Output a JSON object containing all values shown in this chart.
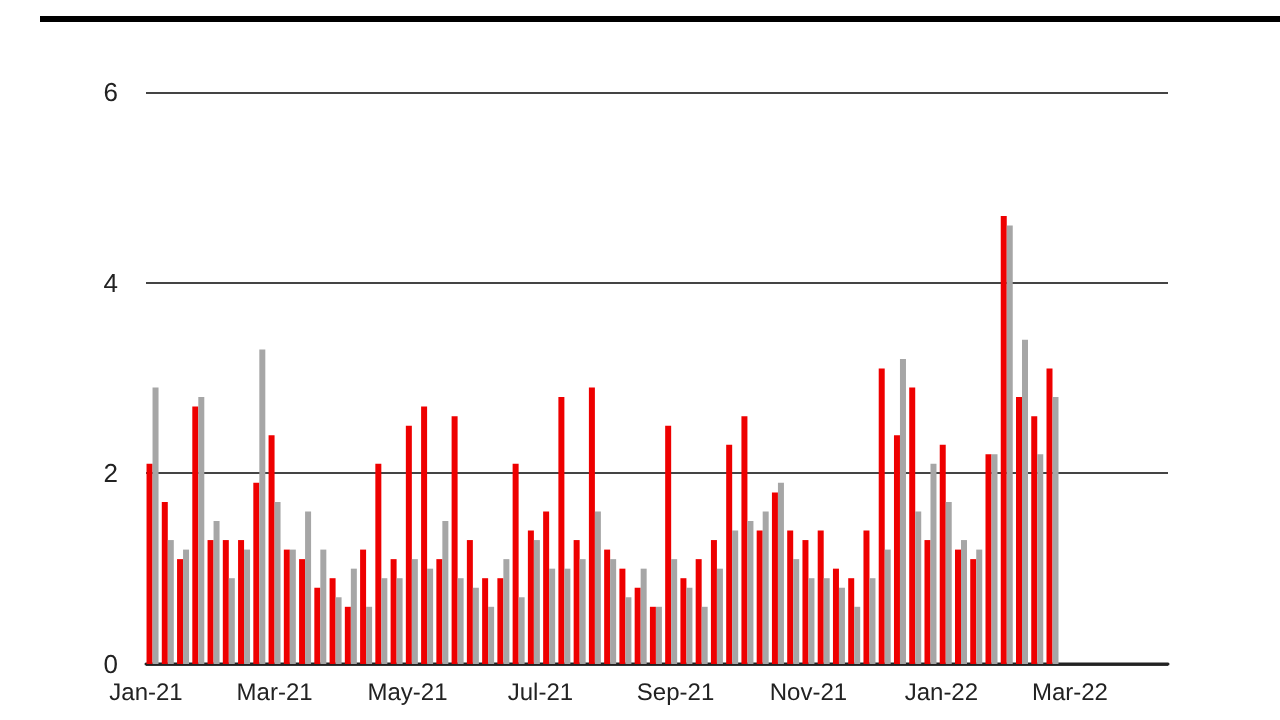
{
  "chart_data": {
    "type": "bar",
    "x": [
      "2021-01-04",
      "2021-01-11",
      "2021-01-18",
      "2021-01-25",
      "2021-02-01",
      "2021-02-08",
      "2021-02-15",
      "2021-02-22",
      "2021-03-01",
      "2021-03-08",
      "2021-03-15",
      "2021-03-22",
      "2021-03-29",
      "2021-04-05",
      "2021-04-12",
      "2021-04-19",
      "2021-04-26",
      "2021-05-03",
      "2021-05-10",
      "2021-05-17",
      "2021-05-24",
      "2021-05-31",
      "2021-06-07",
      "2021-06-14",
      "2021-06-21",
      "2021-06-28",
      "2021-07-05",
      "2021-07-12",
      "2021-07-19",
      "2021-07-26",
      "2021-08-02",
      "2021-08-09",
      "2021-08-16",
      "2021-08-23",
      "2021-08-30",
      "2021-09-06",
      "2021-09-13",
      "2021-09-20",
      "2021-09-27",
      "2021-10-04",
      "2021-10-11",
      "2021-10-18",
      "2021-10-25",
      "2021-11-01",
      "2021-11-08",
      "2021-11-15",
      "2021-11-22",
      "2021-11-29",
      "2021-12-06",
      "2021-12-13",
      "2021-12-20",
      "2021-12-27",
      "2022-01-03",
      "2022-01-10",
      "2022-01-17",
      "2022-01-24",
      "2022-01-31",
      "2022-02-07",
      "2022-02-14",
      "2022-02-21"
    ],
    "series": [
      {
        "color": "#ee0000",
        "values": [
          2.1,
          1.7,
          1.1,
          2.7,
          1.3,
          1.3,
          1.3,
          1.9,
          2.4,
          1.2,
          1.1,
          0.8,
          0.9,
          0.6,
          1.2,
          2.1,
          1.1,
          2.5,
          2.7,
          1.1,
          2.6,
          1.3,
          0.9,
          0.9,
          2.1,
          1.4,
          1.6,
          2.8,
          1.3,
          2.9,
          1.2,
          1.0,
          0.8,
          0.6,
          2.5,
          0.9,
          1.1,
          1.3,
          2.3,
          2.6,
          1.4,
          1.8,
          1.4,
          1.3,
          1.4,
          1.0,
          0.9,
          1.4,
          3.1,
          2.4,
          2.9,
          1.3,
          2.3,
          1.2,
          1.1,
          2.2,
          4.7,
          2.8,
          2.6,
          3.1
        ]
      },
      {
        "color": "#a6a6a6",
        "values": [
          2.9,
          1.3,
          1.2,
          2.8,
          1.5,
          0.9,
          1.2,
          3.3,
          1.7,
          1.2,
          1.6,
          1.2,
          0.7,
          1.0,
          0.6,
          0.9,
          0.9,
          1.1,
          1.0,
          1.5,
          0.9,
          0.8,
          0.6,
          1.1,
          0.7,
          1.3,
          1.0,
          1.0,
          1.1,
          1.6,
          1.1,
          0.7,
          1.0,
          0.6,
          1.1,
          0.8,
          0.6,
          1.0,
          1.4,
          1.5,
          1.6,
          1.9,
          1.1,
          0.9,
          0.9,
          0.8,
          0.6,
          0.9,
          1.2,
          3.2,
          1.6,
          2.1,
          1.7,
          1.3,
          1.2,
          2.2,
          4.6,
          3.4,
          2.2,
          2.8
        ]
      }
    ],
    "xlim": [
      "2021-01-01",
      "2022-04-15"
    ],
    "xticks": [
      {
        "value": "2021-01-01",
        "label": "Jan-21"
      },
      {
        "value": "2021-03-01",
        "label": "Mar-21"
      },
      {
        "value": "2021-05-01",
        "label": "May-21"
      },
      {
        "value": "2021-07-01",
        "label": "Jul-21"
      },
      {
        "value": "2021-09-01",
        "label": "Sep-21"
      },
      {
        "value": "2021-11-01",
        "label": "Nov-21"
      },
      {
        "value": "2022-01-01",
        "label": "Jan-22"
      },
      {
        "value": "2022-03-01",
        "label": "Mar-22"
      }
    ],
    "ylim": [
      0,
      6
    ],
    "yticks": [
      0,
      2,
      4,
      6
    ],
    "grid": "y"
  }
}
